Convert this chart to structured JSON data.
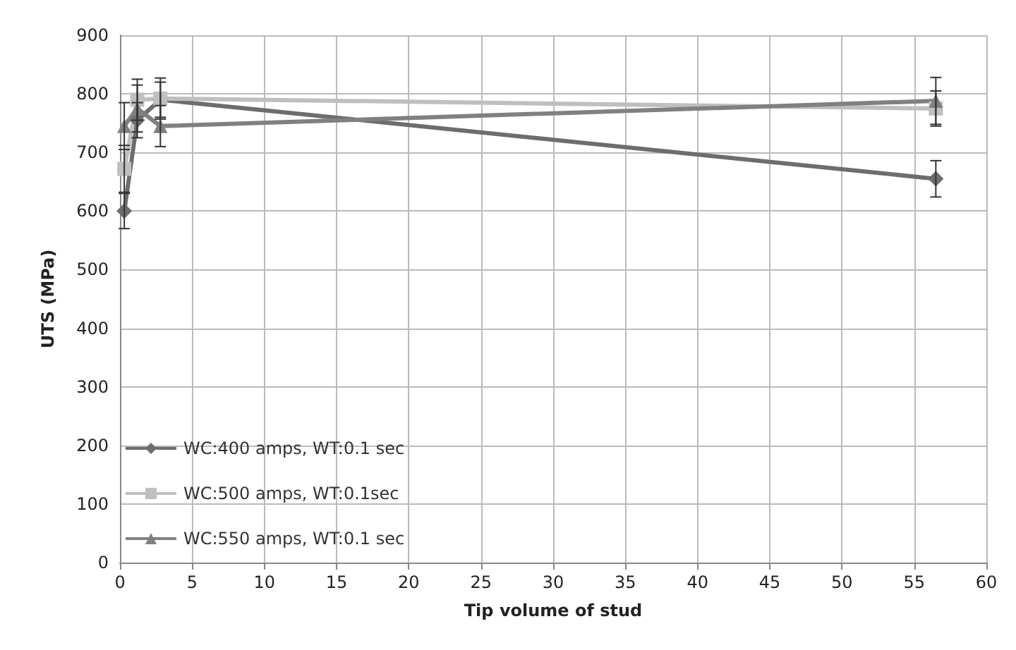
{
  "chart_data": {
    "type": "line",
    "xlabel": "Tip volume of stud",
    "ylabel": "UTS (MPa)",
    "xlim": [
      0,
      60
    ],
    "xticks": [
      0,
      5,
      10,
      15,
      20,
      25,
      30,
      35,
      40,
      45,
      50,
      55,
      60
    ],
    "ylim": [
      0,
      900
    ],
    "yticks": [
      0,
      100,
      200,
      300,
      400,
      500,
      600,
      700,
      800,
      900
    ],
    "grid": true,
    "legend": "bottom left",
    "series": [
      {
        "name": "WC:400 amps, WT:0.1 sec",
        "color": "#6d6d6d",
        "marker": "diamond",
        "x": [
          0.3,
          1.2,
          2.8,
          56.5
        ],
        "values": [
          600,
          755,
          790,
          655
        ],
        "errors": [
          30,
          30,
          30,
          31
        ]
      },
      {
        "name": "WC:500 amps, WT:0.1sec",
        "color": "#bfbfbf",
        "marker": "square",
        "x": [
          0.3,
          1.2,
          2.8,
          56.5
        ],
        "values": [
          672,
          790,
          792,
          775
        ],
        "errors": [
          40,
          35,
          35,
          30
        ]
      },
      {
        "name": "WC:550 amps, WT:0.1 sec",
        "color": "#808080",
        "marker": "triangle",
        "x": [
          0.3,
          1.2,
          2.8,
          56.5
        ],
        "values": [
          745,
          775,
          745,
          788
        ],
        "errors": [
          40,
          40,
          35,
          40
        ]
      }
    ]
  }
}
